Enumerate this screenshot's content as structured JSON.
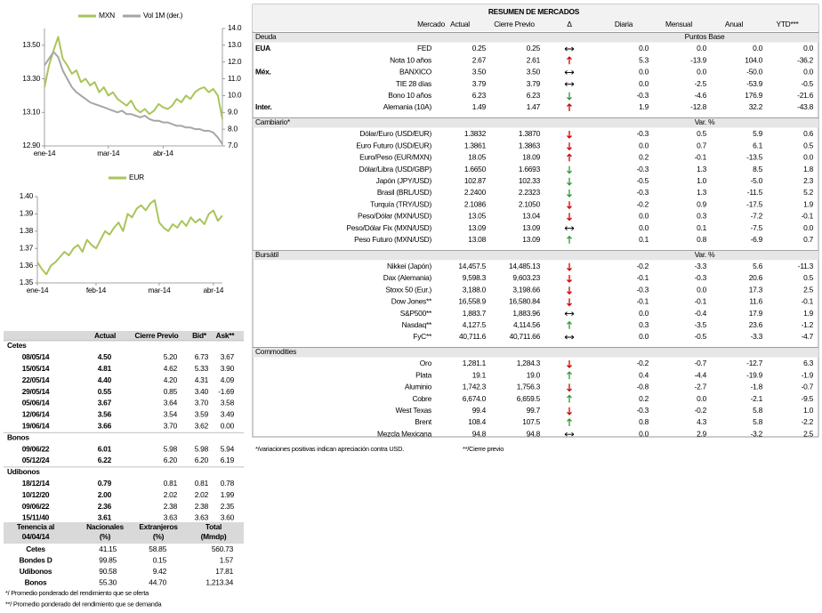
{
  "chart_data": [
    {
      "type": "line",
      "categories": [
        "ene-14",
        null,
        null,
        null,
        null,
        null,
        null,
        null,
        null,
        null,
        null,
        null,
        null,
        null,
        "mar-14",
        null,
        null,
        null,
        null,
        null,
        null,
        null,
        null,
        null,
        null,
        null,
        "abr-14",
        null,
        null,
        null,
        null,
        null,
        null,
        null,
        null,
        null,
        null,
        null,
        null,
        null
      ],
      "series": [
        {
          "name": "MXN",
          "color": "#a9c55a",
          "values": [
            13.25,
            13.38,
            13.47,
            13.55,
            13.42,
            13.38,
            13.33,
            13.35,
            13.28,
            13.3,
            13.26,
            13.28,
            13.22,
            13.25,
            13.2,
            13.22,
            13.18,
            13.16,
            13.14,
            13.17,
            13.12,
            13.1,
            13.12,
            13.09,
            13.11,
            13.15,
            13.13,
            13.12,
            13.14,
            13.18,
            13.16,
            13.2,
            13.18,
            13.22,
            13.24,
            13.25,
            13.22,
            13.24,
            13.2,
            13.06
          ]
        },
        {
          "name": "Vol 1M (der.)",
          "color": "#a6a6a6",
          "axis": "y2",
          "values": [
            11.8,
            12.2,
            12.6,
            12.3,
            11.5,
            11.0,
            10.5,
            10.2,
            10.0,
            9.8,
            9.6,
            9.5,
            9.4,
            9.3,
            9.2,
            9.1,
            9.0,
            9.1,
            8.9,
            8.9,
            8.8,
            8.7,
            8.8,
            8.6,
            8.5,
            8.5,
            8.4,
            8.4,
            8.3,
            8.2,
            8.2,
            8.1,
            8.1,
            8.0,
            8.0,
            7.9,
            7.9,
            7.8,
            7.5,
            7.1
          ]
        }
      ],
      "ylim": [
        12.9,
        13.6
      ],
      "yticks": [
        {
          "value": 12.9,
          "label": "12.90"
        },
        {
          "value": 13.1,
          "label": "13.10"
        },
        {
          "value": 13.3,
          "label": "13.30"
        },
        {
          "value": 13.5,
          "label": "13.50"
        }
      ],
      "y2lim": [
        7,
        14
      ],
      "y2ticks": [
        {
          "value": 7,
          "label": "7.0"
        },
        {
          "value": 8,
          "label": "8.0"
        },
        {
          "value": 9,
          "label": "9.0"
        },
        {
          "value": 10,
          "label": "10.0"
        },
        {
          "value": 11,
          "label": "11.0"
        },
        {
          "value": 12,
          "label": "12.0"
        },
        {
          "value": 13,
          "label": "13.0"
        },
        {
          "value": 14,
          "label": "14.0"
        }
      ],
      "grid": false
    },
    {
      "type": "line",
      "categories": [
        "ene-14",
        null,
        null,
        null,
        null,
        null,
        null,
        null,
        null,
        null,
        null,
        null,
        null,
        "feb-14",
        null,
        null,
        null,
        null,
        null,
        null,
        null,
        null,
        null,
        null,
        null,
        null,
        null,
        "mar-14",
        null,
        null,
        null,
        null,
        null,
        null,
        null,
        null,
        null,
        null,
        null,
        "abr-14",
        null,
        null
      ],
      "series": [
        {
          "name": "EUR",
          "color": "#a9c55a",
          "values": [
            1.362,
            1.358,
            1.355,
            1.36,
            1.362,
            1.365,
            1.368,
            1.366,
            1.37,
            1.372,
            1.368,
            1.375,
            1.372,
            1.37,
            1.375,
            1.38,
            1.378,
            1.382,
            1.385,
            1.38,
            1.39,
            1.388,
            1.393,
            1.395,
            1.392,
            1.396,
            1.398,
            1.385,
            1.382,
            1.38,
            1.384,
            1.382,
            1.386,
            1.383,
            1.388,
            1.385,
            1.387,
            1.384,
            1.39,
            1.392,
            1.386,
            1.389
          ]
        }
      ],
      "ylim": [
        1.35,
        1.4
      ],
      "yticks": [
        1.35,
        1.36,
        1.37,
        1.38,
        1.39,
        {
          "value": 1.4,
          "label": "1.40"
        }
      ],
      "grid": false
    }
  ],
  "summary": {
    "title": "RESUMEN DE MERCADOS",
    "columns": [
      "Mercado",
      "Actual",
      "Cierre Previo",
      "Δ",
      "Diaria",
      "Mensual",
      "Anual",
      "YTD***"
    ],
    "sections": [
      {
        "name": "Deuda",
        "unit": "Puntos Base",
        "rows": [
          {
            "group": "EUA",
            "label": "FED",
            "values": [
              "0.25",
              "0.25",
              "0.0",
              "0.0",
              "0.0",
              "0.0"
            ],
            "arrow": "flat"
          },
          {
            "label": "Nota 10 años",
            "values": [
              "2.67",
              "2.61",
              "5.3",
              "-13.9",
              "104.0",
              "-36.2"
            ],
            "arrow": "up",
            "arrow_color": "#d00000"
          },
          {
            "group": "Méx.",
            "label": "BANXICO",
            "values": [
              "3.50",
              "3.50",
              "0.0",
              "0.0",
              "-50.0",
              "0.0"
            ],
            "arrow": "flat"
          },
          {
            "label": "TIE 28 días",
            "values": [
              "3.79",
              "3.79",
              "0.0",
              "-2.5",
              "-53.9",
              "-0.5"
            ],
            "arrow": "flat"
          },
          {
            "label": "Bono 10 años",
            "values": [
              "6.23",
              "6.23",
              "-0.3",
              "-4.6",
              "176.9",
              "-21.6"
            ],
            "arrow": "down",
            "arrow_color": "#2e9a2e"
          },
          {
            "group": "Inter.",
            "label": "Alemania (10A)",
            "values": [
              "1.49",
              "1.47",
              "1.9",
              "-12.8",
              "32.2",
              "-43.8"
            ],
            "arrow": "up",
            "arrow_color": "#d00000"
          }
        ]
      },
      {
        "name": "Cambiario*",
        "unit": "Var. %",
        "rows": [
          {
            "label": "Dólar/Euro (USD/EUR)",
            "values": [
              "1.3832",
              "1.3870",
              "-0.3",
              "0.5",
              "5.9",
              "0.6"
            ],
            "arrow": "down",
            "arrow_color": "#d00000"
          },
          {
            "label": "Euro Futuro (USD/EUR)",
            "values": [
              "1.3861",
              "1.3863",
              "0.0",
              "0.7",
              "6.1",
              "0.5"
            ],
            "arrow": "down",
            "arrow_color": "#d00000"
          },
          {
            "label": "Euro/Peso  (EUR/MXN)",
            "values": [
              "18.05",
              "18.09",
              "0.2",
              "-0.1",
              "-13.5",
              "0.0"
            ],
            "arrow": "up",
            "arrow_color": "#d00000"
          },
          {
            "label": "Dólar/Libra (USD/GBP)",
            "values": [
              "1.6650",
              "1.6693",
              "-0.3",
              "1.3",
              "8.5",
              "1.8"
            ],
            "arrow": "down",
            "arrow_color": "#2e9a2e"
          },
          {
            "label": "Japón (JPY/USD)",
            "values": [
              "102.87",
              "102.33",
              "-0.5",
              "1.0",
              "-5.0",
              "2.3"
            ],
            "arrow": "down",
            "arrow_color": "#2e9a2e"
          },
          {
            "label": "Brasil (BRL/USD)",
            "values": [
              "2.2400",
              "2.2323",
              "-0.3",
              "1.3",
              "-11.5",
              "5.2"
            ],
            "arrow": "down",
            "arrow_color": "#2e9a2e"
          },
          {
            "label": "Turquía (TRY/USD)",
            "values": [
              "2.1086",
              "2.1050",
              "-0.2",
              "0.9",
              "-17.5",
              "1.9"
            ],
            "arrow": "down",
            "arrow_color": "#d00000"
          },
          {
            "label": "Peso/Dólar (MXN/USD)",
            "values": [
              "13.05",
              "13.04",
              "0.0",
              "0.3",
              "-7.2",
              "-0.1"
            ],
            "arrow": "down",
            "arrow_color": "#d00000"
          },
          {
            "label": "Peso/Dólar Fix (MXN/USD)",
            "values": [
              "13.09",
              "13.09",
              "0.0",
              "0.1",
              "-7.5",
              "0.0"
            ],
            "arrow": "flat"
          },
          {
            "label": "Peso Futuro (MXN/USD)",
            "values": [
              "13.08",
              "13.09",
              "0.1",
              "0.8",
              "-6.9",
              "0.7"
            ],
            "arrow": "up",
            "arrow_color": "#2e9a2e"
          }
        ]
      },
      {
        "name": "Bursátil",
        "unit": "Var. %",
        "rows": [
          {
            "label": "Nikkei (Japón)",
            "values": [
              "14,457.5",
              "14,485.13",
              "-0.2",
              "-3.3",
              "5.6",
              "-11.3"
            ],
            "arrow": "down",
            "arrow_color": "#d00000"
          },
          {
            "label": "Dax (Alemania)",
            "values": [
              "9,598.3",
              "9,603.23",
              "-0.1",
              "-0.3",
              "20.6",
              "0.5"
            ],
            "arrow": "down",
            "arrow_color": "#d00000"
          },
          {
            "label": "Stoxx 50 (Eur.)",
            "values": [
              "3,188.0",
              "3,198.66",
              "-0.3",
              "0.0",
              "17.3",
              "2.5"
            ],
            "arrow": "down",
            "arrow_color": "#d00000"
          },
          {
            "label": "Dow  Jones**",
            "values": [
              "16,558.9",
              "16,580.84",
              "-0.1",
              "-0.1",
              "11.6",
              "-0.1"
            ],
            "arrow": "down",
            "arrow_color": "#d00000"
          },
          {
            "label": "S&P500**",
            "values": [
              "1,883.7",
              "1,883.96",
              "0.0",
              "-0.4",
              "17.9",
              "1.9"
            ],
            "arrow": "flat"
          },
          {
            "label": "Nasdaq**",
            "values": [
              "4,127.5",
              "4,114.56",
              "0.3",
              "-3.5",
              "23.6",
              "-1.2"
            ],
            "arrow": "up",
            "arrow_color": "#2e9a2e"
          },
          {
            "label": "FyC**",
            "values": [
              "40,711.6",
              "40,711.66",
              "0.0",
              "-0.5",
              "-3.3",
              "-4.7"
            ],
            "arrow": "flat"
          }
        ]
      },
      {
        "name": "Commodities",
        "rows": [
          {
            "label": "Oro",
            "values": [
              "1,281.1",
              "1,284.3",
              "-0.2",
              "-0.7",
              "-12.7",
              "6.3"
            ],
            "arrow": "down",
            "arrow_color": "#d00000"
          },
          {
            "label": "Plata",
            "values": [
              "19.1",
              "19.0",
              "0.4",
              "-4.4",
              "-19.9",
              "-1.9"
            ],
            "arrow": "up",
            "arrow_color": "#2e9a2e"
          },
          {
            "label": "Aluminio",
            "values": [
              "1,742.3",
              "1,756.3",
              "-0.8",
              "-2.7",
              "-1.8",
              "-0.7"
            ],
            "arrow": "down",
            "arrow_color": "#d00000"
          },
          {
            "label": "Cobre",
            "values": [
              "6,674.0",
              "6,659.5",
              "0.2",
              "0.0",
              "-2.1",
              "-9.5"
            ],
            "arrow": "up",
            "arrow_color": "#2e9a2e"
          },
          {
            "label": "West Texas",
            "values": [
              "99.4",
              "99.7",
              "-0.3",
              "-0.2",
              "5.8",
              "1.0"
            ],
            "arrow": "down",
            "arrow_color": "#d00000"
          },
          {
            "label": "Brent",
            "values": [
              "108.4",
              "107.5",
              "0.8",
              "4.3",
              "5.8",
              "-2.2"
            ],
            "arrow": "up",
            "arrow_color": "#2e9a2e"
          },
          {
            "label": "Mezcla Mexicana",
            "values": [
              "94.8",
              "94.8",
              "0.0",
              "2.9",
              "-3.2",
              "2.5"
            ],
            "arrow": "flat"
          }
        ]
      }
    ],
    "notes": [
      "*/variaciones positivas indican apreciación contra USD.",
      "**/Cierre previo"
    ]
  },
  "rates": {
    "columns": [
      "Actual",
      "Cierre Previo",
      "Bid*",
      "Ask**"
    ],
    "sections": [
      {
        "name": "Cetes",
        "rows": [
          [
            "08/05/14",
            "4.50",
            "5.20",
            "6.73",
            "3.67"
          ],
          [
            "15/05/14",
            "4.81",
            "4.62",
            "5.33",
            "3.90"
          ],
          [
            "22/05/14",
            "4.40",
            "4.20",
            "4.31",
            "4.09"
          ],
          [
            "29/05/14",
            "0.55",
            "0.85",
            "3.40",
            "-1.69"
          ],
          [
            "05/06/14",
            "3.67",
            "3.64",
            "3.70",
            "3.58"
          ],
          [
            "12/06/14",
            "3.56",
            "3.54",
            "3.59",
            "3.49"
          ],
          [
            "19/06/14",
            "3.66",
            "3.70",
            "3.62",
            "0.00"
          ]
        ]
      },
      {
        "name": "Bonos",
        "rows": [
          [
            "09/06/22",
            "6.01",
            "5.98",
            "5.98",
            "5.94"
          ],
          [
            "05/12/24",
            "6.22",
            "6.20",
            "6.20",
            "6.19"
          ]
        ]
      },
      {
        "name": "Udibonos",
        "rows": [
          [
            "18/12/14",
            "0.79",
            "0.81",
            "0.81",
            "0.78"
          ],
          [
            "10/12/20",
            "2.00",
            "2.02",
            "2.02",
            "1.99"
          ],
          [
            "09/06/22",
            "2.36",
            "2.38",
            "2.38",
            "2.35"
          ],
          [
            "15/11/40",
            "3.61",
            "3.63",
            "3.63",
            "3.60"
          ]
        ]
      }
    ]
  },
  "holdings": {
    "columns": [
      [
        "Tenencia al",
        "04/04/14"
      ],
      [
        "Nacionales",
        "(%)"
      ],
      [
        "Extranjeros",
        "(%)"
      ],
      [
        "Total",
        "(Mmdp)"
      ]
    ],
    "rows": [
      [
        "Cetes",
        "41.15",
        "58.85",
        "560.73"
      ],
      [
        "Bondes D",
        "99.85",
        "0.15",
        "1.57"
      ],
      [
        "Udibonos",
        "90.58",
        "9.42",
        "17.81"
      ],
      [
        "Bonos",
        "55.30",
        "44.70",
        "1,213.34"
      ]
    ],
    "notes": [
      "*/ Promedio ponderado del rendimiento que se oferta",
      "**/ Promedio ponderado del rendimiento que se demanda"
    ]
  }
}
